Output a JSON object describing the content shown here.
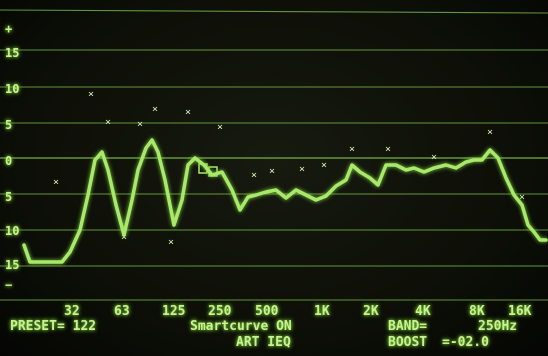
{
  "display": {
    "trace_color": "#a8e86a",
    "grid_color": "#7fc24a",
    "marker_color": "#d8f3b0"
  },
  "y_axis": {
    "labels": [
      "+",
      "15",
      "10",
      "5",
      "0",
      "5",
      "10",
      "15",
      "−"
    ]
  },
  "x_axis": {
    "labels": [
      "32",
      "63",
      "125",
      "250",
      "500",
      "1K",
      "2K",
      "4K",
      "8K",
      "16K"
    ]
  },
  "status": {
    "preset": "PRESET= 122",
    "smartcurve": "Smartcurve ON",
    "mode": "ART IEQ",
    "band": "BAND=",
    "band_value": "250Hz",
    "boost": "BOOST",
    "boost_value": "=-02.0"
  }
}
